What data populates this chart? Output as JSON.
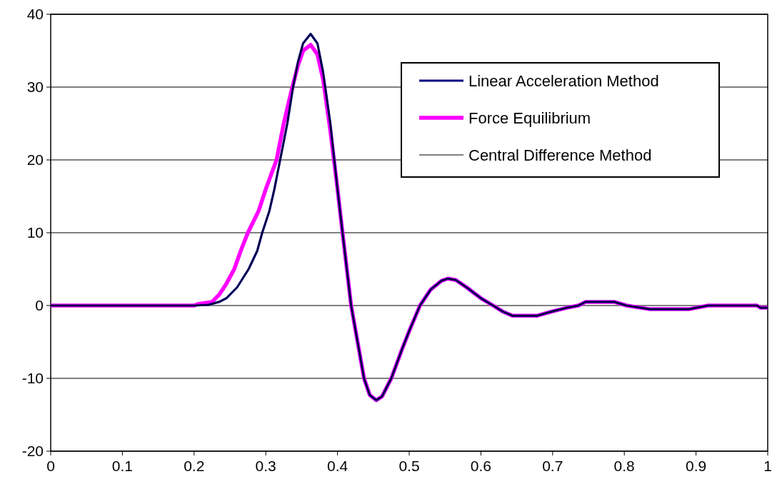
{
  "chart_data": {
    "type": "line",
    "xlim": [
      0,
      1
    ],
    "ylim": [
      -20,
      40
    ],
    "xticks": [
      0,
      0.1,
      0.2,
      0.3,
      0.4,
      0.5,
      0.6,
      0.7,
      0.8,
      0.9,
      1
    ],
    "yticks": [
      -20,
      -10,
      0,
      10,
      20,
      30,
      40
    ],
    "grid": "y",
    "legend": "top right",
    "series": [
      {
        "name": "Linear Acceleration Method",
        "color": "#000080",
        "x": [
          0,
          0.2,
          0.22,
          0.235,
          0.245,
          0.26,
          0.276,
          0.288,
          0.295,
          0.305,
          0.312,
          0.32,
          0.33,
          0.338,
          0.345,
          0.352,
          0.3625,
          0.372,
          0.38,
          0.39,
          0.4,
          0.407,
          0.419,
          0.428,
          0.437,
          0.445,
          0.454,
          0.462,
          0.475,
          0.49,
          0.5,
          0.515,
          0.53,
          0.545,
          0.554,
          0.565,
          0.58,
          0.6,
          0.617,
          0.63,
          0.644,
          0.678,
          0.7,
          0.72,
          0.736,
          0.746,
          0.786,
          0.803,
          0.836,
          0.89,
          0.917,
          0.985,
          0.99,
          1
        ],
        "values": [
          0,
          0,
          0.1,
          0.5,
          1,
          2.5,
          5,
          7.5,
          10,
          13,
          16,
          20,
          25,
          30,
          33.5,
          36,
          37.3,
          36,
          32,
          25,
          16,
          10,
          0,
          -5,
          -10,
          -12.3,
          -13,
          -12.5,
          -10,
          -6,
          -3.5,
          0,
          2.2,
          3.4,
          3.7,
          3.5,
          2.5,
          1,
          0,
          -0.8,
          -1.4,
          -1.4,
          -0.8,
          -0.3,
          0,
          0.5,
          0.5,
          0,
          -0.5,
          -0.5,
          0,
          0,
          -0.3,
          -0.3
        ]
      },
      {
        "name": "Force Equilibrium",
        "color": "#ff00ff",
        "x": [
          0,
          0.2,
          0.205,
          0.225,
          0.235,
          0.245,
          0.256,
          0.265,
          0.275,
          0.29,
          0.3,
          0.315,
          0.325,
          0.337,
          0.345,
          0.352,
          0.3625,
          0.372,
          0.38,
          0.39,
          0.4,
          0.407,
          0.419,
          0.428,
          0.437,
          0.445,
          0.454,
          0.462,
          0.475,
          0.49,
          0.5,
          0.515,
          0.53,
          0.545,
          0.554,
          0.565,
          0.58,
          0.6,
          0.617,
          0.63,
          0.644,
          0.678,
          0.7,
          0.72,
          0.736,
          0.746,
          0.786,
          0.803,
          0.836,
          0.89,
          0.917,
          0.985,
          0.99,
          1
        ],
        "values": [
          0,
          0,
          0.2,
          0.5,
          1.5,
          3,
          5,
          7.5,
          10,
          13,
          16,
          20,
          25,
          30,
          33,
          35,
          35.8,
          34.5,
          31,
          24,
          16,
          10,
          0,
          -5,
          -10,
          -12.3,
          -13,
          -12.5,
          -10,
          -6,
          -3.5,
          0,
          2.2,
          3.4,
          3.7,
          3.5,
          2.5,
          1,
          0,
          -0.8,
          -1.4,
          -1.4,
          -0.8,
          -0.3,
          0,
          0.5,
          0.5,
          0,
          -0.5,
          -0.5,
          0,
          0,
          -0.3,
          -0.3
        ]
      },
      {
        "name": "Central Difference Method",
        "color": "#000000",
        "x": [
          0,
          0.2,
          0.22,
          0.235,
          0.245,
          0.26,
          0.276,
          0.288,
          0.295,
          0.305,
          0.312,
          0.32,
          0.33,
          0.338,
          0.345,
          0.352,
          0.3625,
          0.372,
          0.38,
          0.39,
          0.4,
          0.407,
          0.419,
          0.428,
          0.437,
          0.445,
          0.454,
          0.462,
          0.475,
          0.49,
          0.5,
          0.515,
          0.53,
          0.545,
          0.554,
          0.565,
          0.58,
          0.6,
          0.617,
          0.63,
          0.644,
          0.678,
          0.7,
          0.72,
          0.736,
          0.746,
          0.786,
          0.803,
          0.836,
          0.89,
          0.917,
          0.985,
          0.99,
          1
        ],
        "values": [
          0,
          0,
          0.1,
          0.5,
          1,
          2.5,
          5,
          7.5,
          10,
          13,
          16,
          20,
          25,
          30,
          33.5,
          36,
          37.3,
          36,
          32,
          25,
          16,
          10,
          0,
          -5,
          -10,
          -12.3,
          -13,
          -12.5,
          -10,
          -6,
          -3.5,
          0,
          2.2,
          3.4,
          3.7,
          3.5,
          2.5,
          1,
          0,
          -0.8,
          -1.4,
          -1.4,
          -0.8,
          -0.3,
          0,
          0.5,
          0.5,
          0,
          -0.5,
          -0.5,
          0,
          0,
          -0.3,
          -0.3
        ]
      }
    ]
  }
}
